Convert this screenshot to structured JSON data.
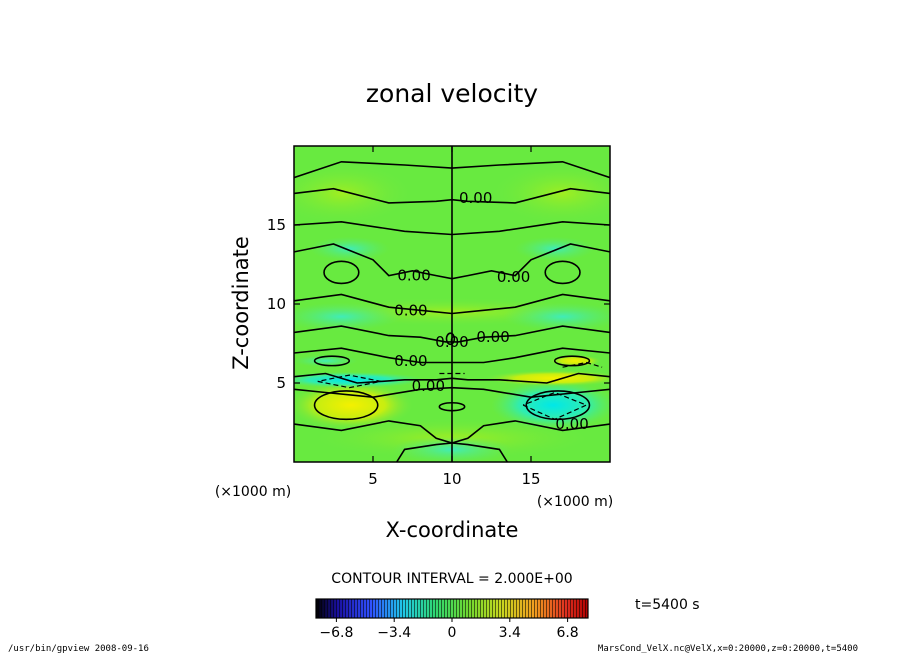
{
  "chart_data": {
    "type": "heatmap",
    "title": "zonal velocity",
    "xlabel": "X-coordinate",
    "ylabel": "Z-coordinate",
    "x_unit": "(×1000 m)",
    "y_unit": "(×1000 m)",
    "xlim": [
      0,
      20
    ],
    "ylim": [
      0,
      20
    ],
    "xticks": [
      5,
      10,
      15
    ],
    "yticks": [
      5,
      10,
      15
    ],
    "contour_interval_label": "CONTOUR INTERVAL = 2.000E+00",
    "contour_labels": [
      "0.00",
      "0.00",
      "0.00",
      "0.00",
      "0.00",
      "0.00",
      "0.00",
      "0.00",
      "0.00"
    ],
    "colorbar": {
      "range": [
        -8,
        8
      ],
      "tick_values": [
        -6.8,
        -3.4,
        0,
        3.4,
        6.8
      ],
      "tick_labels": [
        "−6.8",
        "−3.4",
        "0",
        "3.4",
        "6.8"
      ],
      "colormap": "rainbow (blue-cyan-green-yellow-red)"
    },
    "field_features": [
      {
        "description": "positive anomaly",
        "x": 3.5,
        "z": 3.7,
        "value": 3.0
      },
      {
        "description": "negative anomaly",
        "x": 16.5,
        "z": 3.7,
        "value": -3.0
      },
      {
        "description": "negative band",
        "x": 3.5,
        "z": 5.1,
        "value": -2.5
      },
      {
        "description": "positive band",
        "x": 16.5,
        "z": 5.1,
        "value": 2.5
      }
    ]
  },
  "time_label": "t=5400 s",
  "footer": {
    "left": "/usr/bin/gpview   2008-09-16",
    "right": "MarsCond_VelX.nc@VelX,x=0:20000,z=0:20000,t=5400"
  }
}
